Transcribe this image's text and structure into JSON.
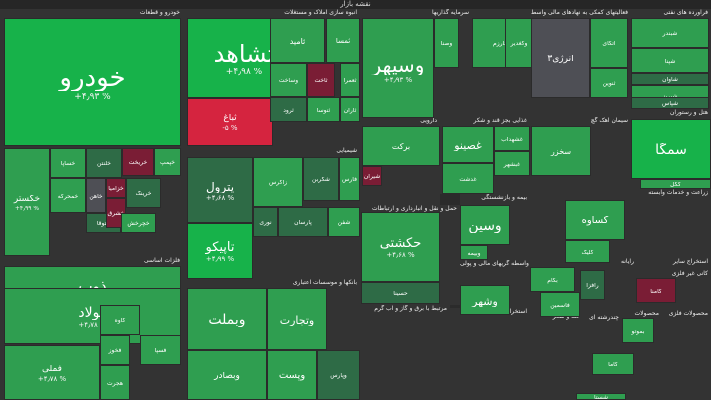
{
  "app": {
    "title": "نقشه بازار"
  },
  "colors": {
    "dark_green": "#2e6b46",
    "green": "#2f9e50",
    "bright_green": "#17b24a",
    "neutral": "#4e4f55",
    "dark_red": "#7a1d35",
    "red": "#d5243f"
  },
  "sectors": [
    {
      "id": "khodro",
      "label": "خودرو و قطعات"
    },
    {
      "id": "anbooh",
      "label": "انبوه سازی املاک و مستغلات"
    },
    {
      "id": "sarmaye",
      "label": "سرمایه گذاریها"
    },
    {
      "id": "fealiat",
      "label": "فعالیتهای کمکی به نهادهای مالی واسط"
    },
    {
      "id": "faravarde",
      "label": "فرآورده های نفتی"
    },
    {
      "id": "shimiaei",
      "label": "شیمیایی"
    },
    {
      "id": "daroei",
      "label": "دارویی"
    },
    {
      "id": "ghazaei",
      "label": "غذایی بجز قند و شکر"
    },
    {
      "id": "siman",
      "label": "سیمان آهک گچ"
    },
    {
      "id": "haml",
      "label": "حمل و نقل و انبارداری و ارتباطات"
    },
    {
      "id": "felezat",
      "label": "فلزات اساسی"
    },
    {
      "id": "bankha",
      "label": "بانکها و موسسات اعتباری"
    },
    {
      "id": "bime",
      "label": "بیمه و بازنشستگی"
    },
    {
      "id": "kashi",
      "label": "کاشی و سرامیک"
    },
    {
      "id": "lastik",
      "label": "لاستیک و پلاستیک"
    },
    {
      "id": "zeraat",
      "label": "زراعت و خدمات وابسته"
    },
    {
      "id": "hotel",
      "label": "هتل و رستوران"
    },
    {
      "id": "vaseteh",
      "label": "واسطه گریهای مالی و پولی"
    },
    {
      "id": "dastgah",
      "label": "دستگاههای برقی"
    },
    {
      "id": "rayane",
      "label": "رایانه"
    },
    {
      "id": "estekhrajsayer",
      "label": "استخراج سایر"
    },
    {
      "id": "kani",
      "label": "کانی غیر فلزی"
    },
    {
      "id": "morakhabat",
      "label": "مرتبط با برق و گاز و آب گرم"
    },
    {
      "id": "estekhrajfelezi",
      "label": "استخراج کانه های فلزی"
    },
    {
      "id": "ghand",
      "label": "قند و شکر"
    },
    {
      "id": "chand",
      "label": "چندرشته ای"
    },
    {
      "id": "mahsoolat",
      "label": "محصولات"
    },
    {
      "id": "mahsoolat_felezi",
      "label": "محصولات فلزی"
    }
  ],
  "tiles": [
    {
      "sym": "خودرو",
      "pct": "+۴٫۹۳ %",
      "c": "bright_green"
    },
    {
      "sym": "خکستر",
      "pct": "+۴٫۹۹ %",
      "c": "green"
    },
    {
      "sym": "خساپا",
      "pct": "",
      "c": "green"
    },
    {
      "sym": "خلنتن",
      "pct": "",
      "c": "dark_green"
    },
    {
      "sym": "خریخت",
      "pct": "",
      "c": "dark_red"
    },
    {
      "sym": "خپمپ",
      "pct": "",
      "c": "green"
    },
    {
      "sym": "خمحرکه",
      "pct": "",
      "c": "green"
    },
    {
      "sym": "خاهن",
      "pct": "",
      "c": "neutral"
    },
    {
      "sym": "خزامیا",
      "pct": "",
      "c": "dark_red"
    },
    {
      "sym": "خرینگ",
      "pct": "",
      "c": "dark_green"
    },
    {
      "sym": "ختوقا",
      "pct": "",
      "c": "dark_green"
    },
    {
      "sym": "خشرق",
      "pct": "",
      "c": "dark_red"
    },
    {
      "sym": "خچرخش",
      "pct": "",
      "c": "green"
    },
    {
      "sym": "ثشاهد",
      "pct": "+۴٫۹۸ %",
      "c": "bright_green"
    },
    {
      "sym": "ثامید",
      "pct": "",
      "c": "green"
    },
    {
      "sym": "ثمسا",
      "pct": "",
      "c": "green"
    },
    {
      "sym": "ثباغ",
      "pct": "-۵ %",
      "c": "red"
    },
    {
      "sym": "وساخت",
      "pct": "",
      "c": "green"
    },
    {
      "sym": "ثاخت",
      "pct": "",
      "c": "dark_red"
    },
    {
      "sym": "ثنوسا",
      "pct": "",
      "c": "green"
    },
    {
      "sym": "ثرود",
      "pct": "",
      "c": "dark_green"
    },
    {
      "sym": "ثعمرا",
      "pct": "",
      "c": "green"
    },
    {
      "sym": "ثاران",
      "pct": "",
      "c": "green"
    },
    {
      "sym": "وسپهر",
      "pct": "+۴٫۹۳ %",
      "c": "green"
    },
    {
      "sym": "وصنا",
      "pct": "",
      "c": "green"
    },
    {
      "sym": "وخارزم",
      "pct": "",
      "c": "green"
    },
    {
      "sym": "وکغدیر",
      "pct": "",
      "c": "green"
    },
    {
      "sym": "انرژی۳",
      "pct": "",
      "c": "neutral"
    },
    {
      "sym": "اتکای",
      "pct": "",
      "c": "green"
    },
    {
      "sym": "ثنوین",
      "pct": "",
      "c": "green"
    },
    {
      "sym": "شبندر",
      "pct": "",
      "c": "green"
    },
    {
      "sym": "شپنا",
      "pct": "",
      "c": "green"
    },
    {
      "sym": "شاوان",
      "pct": "",
      "c": "dark_green"
    },
    {
      "sym": "شبریز",
      "pct": "",
      "c": "green"
    },
    {
      "sym": "شپاس",
      "pct": "",
      "c": "dark_green"
    },
    {
      "sym": "پترول",
      "pct": "+۴٫۶۸ %",
      "c": "dark_green"
    },
    {
      "sym": "زاگرس",
      "pct": "",
      "c": "green"
    },
    {
      "sym": "شکربن",
      "pct": "",
      "c": "dark_green"
    },
    {
      "sym": "فارس",
      "pct": "",
      "c": "green"
    },
    {
      "sym": "نوری",
      "pct": "",
      "c": "dark_green"
    },
    {
      "sym": "پارسان",
      "pct": "",
      "c": "dark_green"
    },
    {
      "sym": "شفن",
      "pct": "",
      "c": "green"
    },
    {
      "sym": "تاپیکو",
      "pct": "+۴٫۹۹ %",
      "c": "bright_green"
    },
    {
      "sym": "برکت",
      "pct": "",
      "c": "green"
    },
    {
      "sym": "شیران",
      "pct": "",
      "c": "dark_red"
    },
    {
      "sym": "وبملت",
      "pct": "",
      "c": "green"
    },
    {
      "sym": "وتجارت",
      "pct": "",
      "c": "green"
    },
    {
      "sym": "وبصادر",
      "pct": "",
      "c": "green"
    },
    {
      "sym": "وپست",
      "pct": "",
      "c": "green"
    },
    {
      "sym": "وپارس",
      "pct": "",
      "c": "dark_green"
    },
    {
      "sym": "ذوب",
      "pct": "+۴٫۹۸ %",
      "c": "green"
    },
    {
      "sym": "فولاد",
      "pct": "+۴٫۷۸ %",
      "c": "green"
    },
    {
      "sym": "فملی",
      "pct": "+۴٫۷۸ %",
      "c": "green"
    },
    {
      "sym": "کاوه",
      "pct": "",
      "c": "green"
    },
    {
      "sym": "فخوز",
      "pct": "",
      "c": "green"
    },
    {
      "sym": "فسپا",
      "pct": "",
      "c": "green"
    },
    {
      "sym": "هجرت",
      "pct": "",
      "c": "green"
    },
    {
      "sym": "غصینو",
      "pct": "",
      "c": "green"
    },
    {
      "sym": "غدشت",
      "pct": "",
      "c": "green"
    },
    {
      "sym": "غشهداب",
      "pct": "",
      "c": "green"
    },
    {
      "sym": "غبشهر",
      "pct": "",
      "c": "green"
    },
    {
      "sym": "سخزر",
      "pct": "",
      "c": "green"
    },
    {
      "sym": "سمگا",
      "pct": "",
      "c": "bright_green"
    },
    {
      "sym": "کگل",
      "pct": "",
      "c": "green"
    },
    {
      "sym": "وسین",
      "pct": "",
      "c": "green"
    },
    {
      "sym": "وبیمه",
      "pct": "",
      "c": "green"
    },
    {
      "sym": "حکشتی",
      "pct": "+۴٫۶۸ %",
      "c": "green"
    },
    {
      "sym": "حسینا",
      "pct": "",
      "c": "dark_green"
    },
    {
      "sym": "وشهر",
      "pct": "",
      "c": "green"
    },
    {
      "sym": "کساوه",
      "pct": "",
      "c": "green"
    },
    {
      "sym": "کلیک",
      "pct": "",
      "c": "green"
    },
    {
      "sym": "بکام",
      "pct": "",
      "c": "green"
    },
    {
      "sym": "رافزا",
      "pct": "",
      "c": "dark_green"
    },
    {
      "sym": "کامنا",
      "pct": "",
      "c": "dark_red"
    },
    {
      "sym": "کاما",
      "pct": "",
      "c": "green"
    },
    {
      "sym": "بموتو",
      "pct": "",
      "c": "green"
    },
    {
      "sym": "شستا",
      "pct": "",
      "c": "green"
    },
    {
      "sym": "فاسمین",
      "pct": "",
      "c": "green"
    }
  ]
}
